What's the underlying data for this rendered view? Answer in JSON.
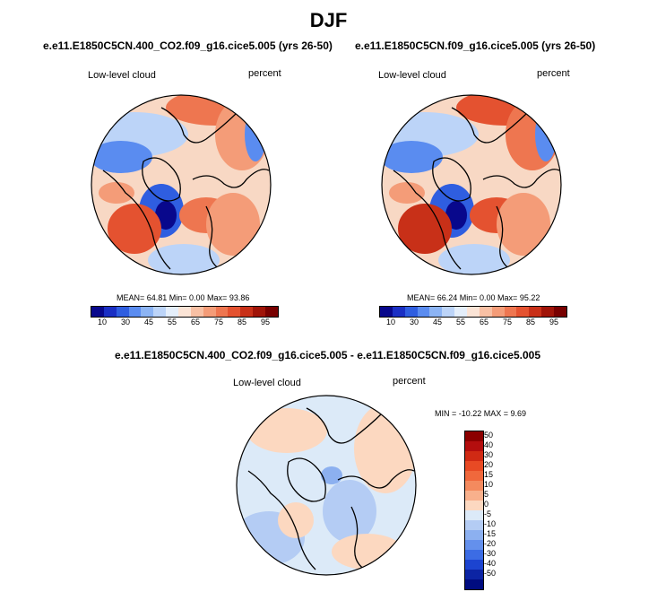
{
  "main_title": "DJF",
  "panels": [
    {
      "title": "e.e11.E1850C5CN.400_CO2.f09_g16.cice5.005 (yrs 26-50)",
      "left_label": "Low-level cloud",
      "right_label": "percent",
      "stats": {
        "mean": "64.81",
        "min": "0.00",
        "max": "93.86"
      },
      "stats_text": "MEAN=  64.81  Min=   0.00  Max=  93.86"
    },
    {
      "title": "e.e11.E1850C5CN.f09_g16.cice5.005 (yrs 26-50)",
      "left_label": "Low-level cloud",
      "right_label": "percent",
      "stats": {
        "mean": "66.24",
        "min": "0.00",
        "max": "95.22"
      },
      "stats_text": "MEAN=  66.24  Min=   0.00  Max=  95.22"
    }
  ],
  "diff_panel": {
    "title": "e.e11.E1850C5CN.400_CO2.f09_g16.cice5.005 - e.e11.E1850C5CN.f09_g16.cice5.005",
    "left_label": "Low-level cloud",
    "right_label": "percent",
    "stats_text": "MIN = -10.22 MAX =   9.69"
  },
  "abs_colorbar": {
    "tick_labels": [
      "10",
      "30",
      "45",
      "55",
      "65",
      "75",
      "85",
      "95"
    ],
    "colors": [
      "#08088c",
      "#1a2fc4",
      "#2f5ee0",
      "#5a8cf0",
      "#8cb4f4",
      "#bcd4f8",
      "#e4eefa",
      "#fbe4d6",
      "#f8c0a4",
      "#f49c78",
      "#ee7650",
      "#e45230",
      "#c83018",
      "#a01408",
      "#780000"
    ]
  },
  "diff_colorbar": {
    "tick_labels": [
      "50",
      "40",
      "30",
      "20",
      "15",
      "10",
      "5",
      "0",
      "-5",
      "-10",
      "-15",
      "-20",
      "-30",
      "-40",
      "-50"
    ],
    "colors": [
      "#8c0000",
      "#b40e0e",
      "#d02a14",
      "#e84a24",
      "#f0683c",
      "#f48a5e",
      "#f8b08c",
      "#fcd8c0",
      "#dceaf8",
      "#b4ccf4",
      "#8cb0f0",
      "#6490ec",
      "#3c6ce4",
      "#1c44d0",
      "#0c24a4",
      "#000c80"
    ]
  },
  "chart_data": [
    {
      "type": "heatmap",
      "projection": "north polar stereographic",
      "title": "e.e11.E1850C5CN.400_CO2.f09_g16.cice5.005 (yrs 26-50)",
      "variable": "Low-level cloud",
      "units": "percent",
      "mean": 64.81,
      "min": 0.0,
      "max": 93.86,
      "levels": [
        10,
        30,
        45,
        55,
        65,
        75,
        85,
        95
      ]
    },
    {
      "type": "heatmap",
      "projection": "north polar stereographic",
      "title": "e.e11.E1850C5CN.f09_g16.cice5.005 (yrs 26-50)",
      "variable": "Low-level cloud",
      "units": "percent",
      "mean": 66.24,
      "min": 0.0,
      "max": 95.22,
      "levels": [
        10,
        30,
        45,
        55,
        65,
        75,
        85,
        95
      ]
    },
    {
      "type": "heatmap",
      "projection": "north polar stereographic",
      "title": "e.e11.E1850C5CN.400_CO2.f09_g16.cice5.005 - e.e11.E1850C5CN.f09_g16.cice5.005",
      "variable": "Low-level cloud",
      "units": "percent",
      "min": -10.22,
      "max": 9.69,
      "levels": [
        50,
        40,
        30,
        20,
        15,
        10,
        5,
        0,
        -5,
        -10,
        -15,
        -20,
        -30,
        -40,
        -50
      ]
    }
  ]
}
